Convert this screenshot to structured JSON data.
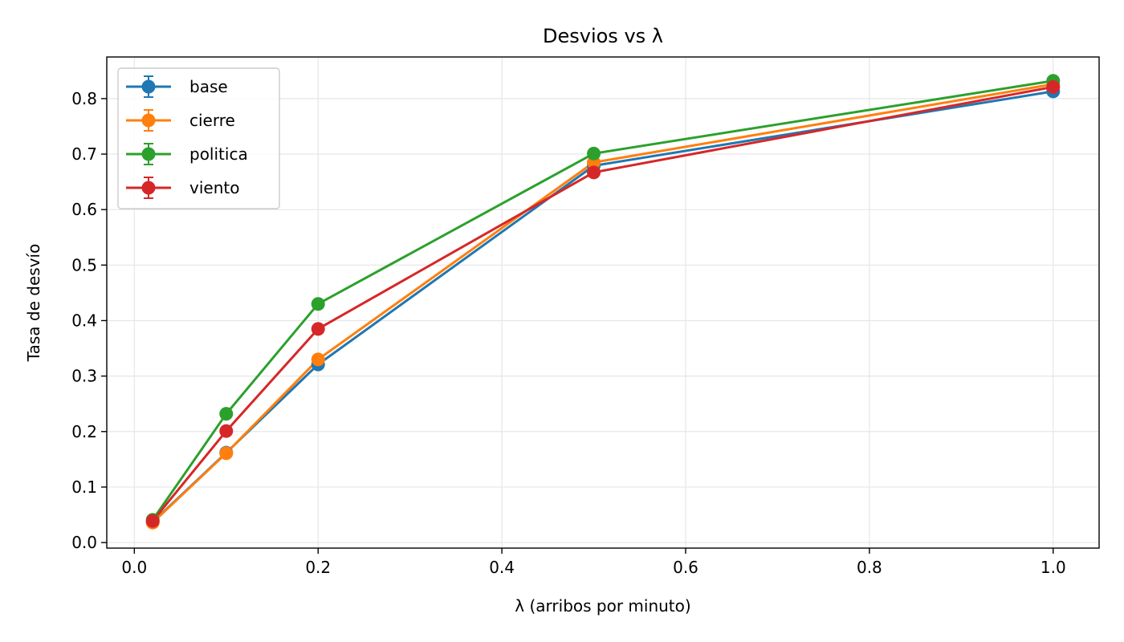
{
  "chart_data": {
    "type": "line",
    "title": "Desvios vs λ",
    "xlabel": "λ (arribos por minuto)",
    "ylabel": "Tasa de desvío",
    "x": [
      0.02,
      0.1,
      0.2,
      0.5,
      1.0
    ],
    "xlim": [
      -0.03,
      1.05
    ],
    "ylim": [
      -0.01,
      0.875
    ],
    "xticks": [
      0.0,
      0.2,
      0.4,
      0.6,
      0.8,
      1.0
    ],
    "xtick_labels": [
      "0.0",
      "0.2",
      "0.4",
      "0.6",
      "0.8",
      "1.0"
    ],
    "yticks": [
      0.0,
      0.1,
      0.2,
      0.3,
      0.4,
      0.5,
      0.6,
      0.7,
      0.8
    ],
    "ytick_labels": [
      "0.0",
      "0.1",
      "0.2",
      "0.3",
      "0.4",
      "0.5",
      "0.6",
      "0.7",
      "0.8"
    ],
    "grid": true,
    "legend_position": "top-left",
    "markers": "circle",
    "error_bars": true,
    "series": [
      {
        "name": "base",
        "color": "#1f77b4",
        "values": [
          0.037,
          0.162,
          0.321,
          0.679,
          0.813
        ]
      },
      {
        "name": "cierre",
        "color": "#ff7f0e",
        "values": [
          0.036,
          0.161,
          0.33,
          0.685,
          0.826
        ]
      },
      {
        "name": "politica",
        "color": "#2ca02c",
        "values": [
          0.041,
          0.232,
          0.43,
          0.701,
          0.832
        ]
      },
      {
        "name": "viento",
        "color": "#d62728",
        "values": [
          0.039,
          0.201,
          0.385,
          0.667,
          0.821
        ]
      }
    ]
  }
}
